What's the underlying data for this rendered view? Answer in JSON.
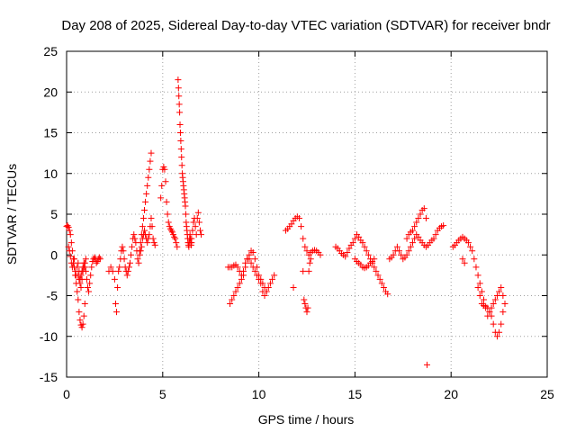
{
  "chart_data": {
    "type": "scatter",
    "title": "Day 208 of 2025, Sidereal Day-to-day VTEC variation (SDTVAR) for receiver bndr",
    "xlabel": "GPS time / hours",
    "ylabel": "SDTVAR / TECUs",
    "xlim": [
      0,
      25
    ],
    "ylim": [
      -15,
      25
    ],
    "xticks": [
      0,
      5,
      10,
      15,
      20,
      25
    ],
    "yticks": [
      -15,
      -10,
      -5,
      0,
      5,
      10,
      15,
      20,
      25
    ],
    "grid": true,
    "marker": "+",
    "color": "#ff0000",
    "series": [
      {
        "name": "SDTVAR",
        "x": [
          0.0,
          0.05,
          0.1,
          0.15,
          0.2,
          0.25,
          0.3,
          0.35,
          0.4,
          0.45,
          0.5,
          0.55,
          0.6,
          0.65,
          0.7,
          0.75,
          0.8,
          0.85,
          0.9,
          0.95,
          0.1,
          0.15,
          0.2,
          0.25,
          0.3,
          0.35,
          0.4,
          0.45,
          0.5,
          0.55,
          0.6,
          0.65,
          0.7,
          0.75,
          0.8,
          0.85,
          0.9,
          0.95,
          1.0,
          1.05,
          1.1,
          1.15,
          1.2,
          1.25,
          1.3,
          1.35,
          1.4,
          1.45,
          1.5,
          1.55,
          1.6,
          1.65,
          1.7,
          1.75,
          0.6,
          0.65,
          0.7,
          0.75,
          0.8,
          0.85,
          0.9,
          0.95,
          1.0,
          2.2,
          2.3,
          2.4,
          2.5,
          2.55,
          2.6,
          2.65,
          2.7,
          2.75,
          2.8,
          2.85,
          2.9,
          2.95,
          3.0,
          3.05,
          3.1,
          3.15,
          3.2,
          3.25,
          3.3,
          3.35,
          3.4,
          3.45,
          3.5,
          3.55,
          3.6,
          3.65,
          3.7,
          3.75,
          3.8,
          3.85,
          3.9,
          3.95,
          4.0,
          4.05,
          4.1,
          4.15,
          4.2,
          4.25,
          4.3,
          4.35,
          4.4,
          4.45,
          4.5,
          4.55,
          4.6,
          3.8,
          3.85,
          3.9,
          3.95,
          4.0,
          4.05,
          4.1,
          4.15,
          4.2,
          4.25,
          4.3,
          4.35,
          4.4,
          4.9,
          4.95,
          5.0,
          5.05,
          5.1,
          5.15,
          5.2,
          5.25,
          5.3,
          5.35,
          5.4,
          5.45,
          5.5,
          5.55,
          5.6,
          5.65,
          5.7,
          5.75,
          5.8,
          5.82,
          5.84,
          5.86,
          5.88,
          5.9,
          5.92,
          5.94,
          5.96,
          5.98,
          6.0,
          6.02,
          6.04,
          6.06,
          6.08,
          6.1,
          6.12,
          6.14,
          6.16,
          6.18,
          6.2,
          6.22,
          6.24,
          6.26,
          6.28,
          6.3,
          6.32,
          6.34,
          6.36,
          6.38,
          6.4,
          6.42,
          6.44,
          6.46,
          6.48,
          6.5,
          6.5,
          6.55,
          6.6,
          6.65,
          6.7,
          6.75,
          6.8,
          6.85,
          6.9,
          6.95,
          7.0,
          8.4,
          8.5,
          8.6,
          8.7,
          8.8,
          8.9,
          9.0,
          9.1,
          9.2,
          9.3,
          9.4,
          9.5,
          9.6,
          9.7,
          9.8,
          9.9,
          10.0,
          10.1,
          10.2,
          10.3,
          10.4,
          10.5,
          10.6,
          10.7,
          10.8,
          8.5,
          8.6,
          8.7,
          8.8,
          8.9,
          9.0,
          9.1,
          9.2,
          9.3,
          9.4,
          9.5,
          9.6,
          9.7,
          9.8,
          9.9,
          10.0,
          10.1,
          10.2,
          10.3,
          10.4,
          11.4,
          11.5,
          11.6,
          11.7,
          11.8,
          11.9,
          12.0,
          12.1,
          12.2,
          12.3,
          12.4,
          12.5,
          12.6,
          12.7,
          12.8,
          12.9,
          13.0,
          13.1,
          13.2,
          11.8,
          12.3,
          12.35,
          12.4,
          12.45,
          12.5,
          12.55,
          12.6,
          12.65,
          12.7,
          14.0,
          14.1,
          14.2,
          14.3,
          14.4,
          14.5,
          14.6,
          14.7,
          14.8,
          14.9,
          15.0,
          15.1,
          15.2,
          15.3,
          15.4,
          15.5,
          15.6,
          15.7,
          15.8,
          15.9,
          16.0,
          16.1,
          16.2,
          16.3,
          16.4,
          16.5,
          16.6,
          16.7,
          15.0,
          15.1,
          15.2,
          15.3,
          15.4,
          15.5,
          15.6,
          15.7,
          15.8,
          15.9,
          16.0,
          16.8,
          16.9,
          17.0,
          17.1,
          17.2,
          17.3,
          17.4,
          17.5,
          17.6,
          17.7,
          17.8,
          17.9,
          18.0,
          18.1,
          18.2,
          18.3,
          18.4,
          18.5,
          18.6,
          18.7,
          18.8,
          18.9,
          19.0,
          19.1,
          19.2,
          19.3,
          19.4,
          19.5,
          19.6,
          17.7,
          17.8,
          17.9,
          18.0,
          18.1,
          18.2,
          18.3,
          18.4,
          18.5,
          18.6,
          18.7,
          18.75,
          20.1,
          20.2,
          20.3,
          20.4,
          20.5,
          20.6,
          20.7,
          20.8,
          20.9,
          21.0,
          21.1,
          21.2,
          21.3,
          21.4,
          21.5,
          21.6,
          21.7,
          21.8,
          21.9,
          22.0,
          22.1,
          22.2,
          22.3,
          22.4,
          22.5,
          22.6,
          22.7,
          22.8,
          20.6,
          20.7,
          21.4,
          21.5,
          21.6,
          21.7,
          21.8,
          21.9,
          22.0,
          22.1,
          22.2,
          22.3,
          22.4,
          22.5,
          22.6,
          22.7
        ],
        "y": [
          3.5,
          3.6,
          3.4,
          3.0,
          2.5,
          1.5,
          0.5,
          -0.5,
          -1.5,
          -2.5,
          -3.5,
          -4.5,
          -5.5,
          -7.0,
          -8.0,
          -8.6,
          -8.9,
          -8.5,
          -7.5,
          -6.0,
          1.0,
          0.5,
          -0.2,
          -1.0,
          -1.5,
          -1.0,
          -0.5,
          -2.0,
          -2.5,
          -1.5,
          -1.0,
          -2.0,
          -3.0,
          -2.5,
          -2.0,
          -1.5,
          -1.0,
          -1.5,
          -2.0,
          -3.0,
          -4.0,
          -4.5,
          -3.5,
          -2.5,
          -1.5,
          -0.8,
          -0.5,
          -0.3,
          -0.5,
          -1.0,
          -0.8,
          -0.5,
          -0.3,
          -0.5,
          -2.5,
          -3.0,
          -3.5,
          -4.0,
          -3.0,
          -2.0,
          -1.5,
          -1.0,
          -0.5,
          -2.0,
          -1.5,
          -2.0,
          -3.0,
          -6.0,
          -7.0,
          -4.0,
          -2.0,
          -1.5,
          -0.5,
          0.5,
          1.0,
          0.5,
          -0.5,
          -1.5,
          -2.0,
          -2.5,
          -2.0,
          -1.5,
          -1.0,
          0.0,
          1.0,
          2.0,
          2.5,
          2.0,
          1.5,
          0.5,
          -0.5,
          -1.0,
          0.0,
          0.5,
          1.0,
          2.0,
          2.5,
          3.0,
          2.5,
          2.0,
          1.5,
          2.0,
          2.5,
          3.5,
          4.5,
          3.5,
          2.0,
          1.5,
          1.2,
          0.5,
          1.5,
          2.5,
          3.5,
          4.5,
          5.5,
          6.5,
          7.5,
          8.5,
          9.5,
          10.5,
          11.5,
          12.5,
          7.0,
          8.5,
          10.5,
          10.8,
          10.5,
          9.0,
          6.5,
          5.0,
          4.0,
          3.5,
          3.2,
          3.0,
          2.8,
          2.5,
          2.2,
          2.0,
          1.5,
          1.0,
          21.5,
          20.5,
          19.5,
          18.5,
          17.5,
          16.0,
          15.0,
          14.0,
          13.0,
          12.0,
          11.0,
          10.0,
          9.5,
          9.0,
          8.5,
          8.0,
          7.5,
          7.0,
          6.5,
          6.0,
          5.0,
          4.0,
          3.5,
          3.0,
          2.5,
          2.0,
          1.5,
          1.2,
          1.0,
          1.5,
          2.0,
          2.5,
          2.0,
          1.5,
          1.2,
          1.5,
          2.0,
          3.0,
          4.0,
          4.5,
          3.5,
          2.5,
          4.5,
          5.2,
          4.0,
          3.0,
          2.5,
          -1.5,
          -1.5,
          -1.5,
          -1.3,
          -1.2,
          -1.5,
          -2.0,
          -2.5,
          -2.0,
          -1.0,
          -0.5,
          0.0,
          0.5,
          0.3,
          -0.5,
          -1.5,
          -2.5,
          -3.0,
          -3.5,
          -4.0,
          -4.5,
          -4.0,
          -3.5,
          -3.0,
          -2.5,
          -6.0,
          -5.5,
          -5.0,
          -4.5,
          -4.0,
          -3.5,
          -3.0,
          -2.5,
          -1.5,
          -0.5,
          -0.5,
          -1.0,
          -1.5,
          -2.0,
          -2.5,
          -3.0,
          -3.5,
          -4.5,
          -5.0,
          -4.5,
          3.0,
          3.2,
          3.5,
          3.8,
          4.2,
          4.5,
          4.7,
          4.5,
          3.5,
          2.0,
          1.0,
          0.5,
          0.0,
          0.3,
          0.5,
          0.6,
          0.5,
          0.3,
          0.0,
          -4.0,
          -2.0,
          -5.5,
          -6.0,
          -6.5,
          -7.0,
          -6.5,
          -2.0,
          -1.0,
          -0.5,
          1.0,
          0.8,
          0.5,
          0.2,
          0.0,
          -0.2,
          0.3,
          0.8,
          1.2,
          1.5,
          2.0,
          2.5,
          2.2,
          1.8,
          1.5,
          1.0,
          0.5,
          0.0,
          -0.5,
          -1.0,
          -1.5,
          -2.0,
          -2.5,
          -3.0,
          -3.5,
          -4.0,
          -4.5,
          -4.8,
          -0.5,
          -0.8,
          -1.0,
          -1.2,
          -1.5,
          -1.6,
          -1.5,
          -1.3,
          -1.0,
          -0.8,
          -0.5,
          -0.5,
          -0.3,
          0.0,
          0.5,
          1.0,
          0.5,
          0.0,
          -0.5,
          -0.3,
          0.0,
          0.5,
          1.0,
          1.5,
          2.0,
          2.5,
          2.2,
          1.8,
          1.5,
          1.2,
          1.0,
          1.2,
          1.5,
          1.8,
          2.0,
          2.5,
          3.0,
          3.3,
          3.5,
          3.6,
          2.0,
          2.5,
          2.8,
          3.0,
          3.5,
          4.0,
          4.5,
          5.0,
          5.5,
          5.7,
          4.5,
          -13.5,
          1.0,
          1.2,
          1.5,
          1.8,
          2.0,
          2.2,
          2.0,
          1.8,
          1.5,
          1.0,
          0.5,
          -0.5,
          -1.5,
          -2.5,
          -3.5,
          -4.5,
          -5.5,
          -6.5,
          -7.5,
          -7.0,
          -6.5,
          -6.0,
          -5.5,
          -5.0,
          -4.5,
          -4.0,
          -5.0,
          -6.0,
          -0.5,
          -1.0,
          -4.0,
          -5.0,
          -6.0,
          -6.2,
          -6.3,
          -6.5,
          -7.0,
          -7.5,
          -8.5,
          -9.5,
          -10.0,
          -9.5,
          -8.5,
          -7.0
        ]
      }
    ]
  }
}
